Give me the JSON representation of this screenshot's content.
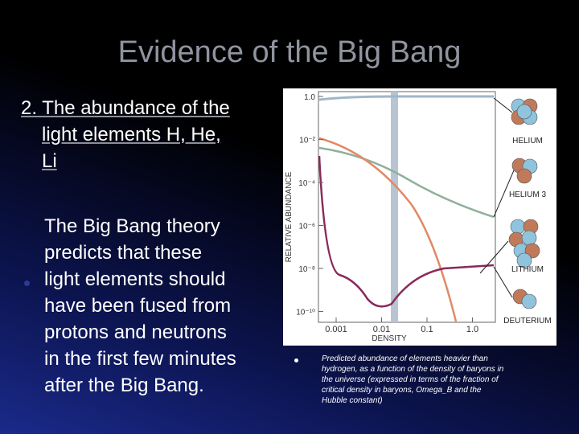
{
  "slide": {
    "title": "Evidence of the Big Bang",
    "heading": [
      "2. The abundance of the",
      "light elements H, He,",
      "Li"
    ],
    "bullet": [
      "The Big Bang theory",
      "predicts that these",
      "light elements should",
      "have been fused from",
      "protons and neutrons",
      "in the first few minutes",
      "after the Big Bang."
    ],
    "figure": {
      "y_axis_label": "RELATIVE ABUNDANCE",
      "x_axis_label": "DENSITY",
      "yticks": [
        "1.0",
        "10⁻²",
        "10⁻⁴",
        "10⁻⁶",
        "10⁻⁸",
        "10⁻¹⁰"
      ],
      "xticks": [
        "0.001",
        "0.01",
        "0.1",
        "1.0"
      ],
      "elements": [
        "HELIUM",
        "HELIUM 3",
        "LITHIUM",
        "DEUTERIUM"
      ]
    },
    "caption": [
      "Predicted abundance of elements heavier than",
      "hydrogen, as a function of the density of baryons in",
      "the universe (expressed in terms of the fraction of",
      "critical density in baryons, Omega_B and the",
      "Hubble constant)"
    ]
  }
}
